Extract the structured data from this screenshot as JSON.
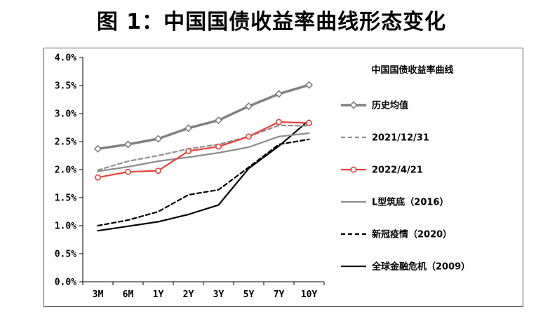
{
  "title": "图 1：中国国债收益率曲线形态变化",
  "chart_data": {
    "type": "line",
    "categories": [
      "3M",
      "6M",
      "1Y",
      "2Y",
      "3Y",
      "5Y",
      "7Y",
      "10Y"
    ],
    "ylim": [
      0,
      4.0
    ],
    "yticks": [
      "0.0%",
      "0.5%",
      "1.0%",
      "1.5%",
      "2.0%",
      "2.5%",
      "3.0%",
      "3.5%",
      "4.0%"
    ],
    "legend_title": "中国国债收益率曲线",
    "legend_position": "right",
    "grid": false,
    "series": [
      {
        "name": "历史均值",
        "values": [
          2.37,
          2.45,
          2.55,
          2.74,
          2.88,
          3.13,
          3.35,
          3.51
        ],
        "color": "#808080",
        "dash": "solid",
        "marker": "diamond",
        "width": 3.5
      },
      {
        "name": "2021/12/31",
        "values": [
          1.99,
          2.15,
          2.25,
          2.37,
          2.45,
          2.59,
          2.79,
          2.78
        ],
        "color": "#909090",
        "dash": "dashed",
        "marker": "none",
        "width": 2.2
      },
      {
        "name": "2022/4/21",
        "values": [
          1.86,
          1.96,
          1.98,
          2.33,
          2.41,
          2.59,
          2.85,
          2.83
        ],
        "color": "#e8413a",
        "dash": "solid",
        "marker": "circle",
        "width": 2.2
      },
      {
        "name": "L型筑底（2016）",
        "values": [
          1.97,
          2.05,
          2.15,
          2.22,
          2.3,
          2.4,
          2.59,
          2.65
        ],
        "color": "#8c8c8c",
        "dash": "solid",
        "marker": "none",
        "width": 2.2
      },
      {
        "name": "新冠疫情（2020）",
        "values": [
          1.0,
          1.1,
          1.25,
          1.55,
          1.64,
          2.04,
          2.45,
          2.54
        ],
        "color": "#000000",
        "dash": "dashed",
        "marker": "none",
        "width": 2.2
      },
      {
        "name": "全球金融危机（2009）",
        "values": [
          0.91,
          0.99,
          1.07,
          1.2,
          1.37,
          2.02,
          2.42,
          2.88
        ],
        "color": "#000000",
        "dash": "solid",
        "marker": "none",
        "width": 2.2
      }
    ]
  }
}
